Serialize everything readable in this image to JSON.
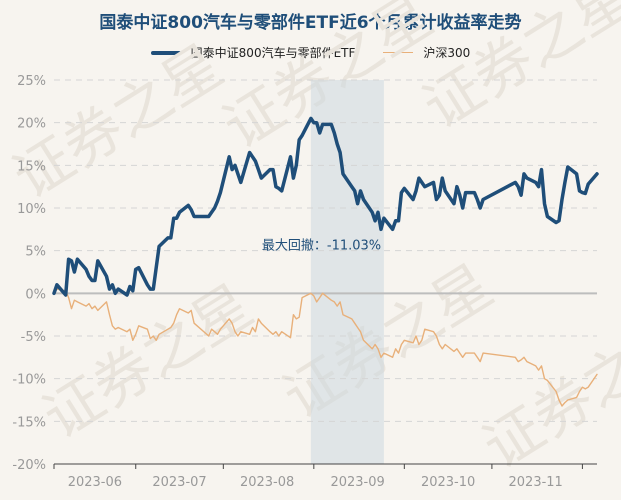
{
  "title": "国泰中证800汽车与零部件ETF近6个月累计收益率走势",
  "colors": {
    "etf": "#1f4e79",
    "index": "#e8b07a",
    "drawdown_band": "#cdd8e0",
    "grid": "#d5d5d5",
    "zero": "#bdbdbd"
  },
  "chart_data": {
    "type": "line",
    "title": "国泰中证800汽车与零部件ETF近6个月累计收益率走势",
    "xlabel": "",
    "ylabel": "",
    "ylim": [
      -20,
      25
    ],
    "y_ticks": [
      "25%",
      "20%",
      "15%",
      "10%",
      "5%",
      "0%",
      "-5%",
      "-10%",
      "-15%",
      "-20%"
    ],
    "x_ticks": [
      "2023-06",
      "2023-07",
      "2023-08",
      "2023-09",
      "2023-10",
      "2023-11"
    ],
    "grid": true,
    "legend_position": "top-center",
    "annotation": {
      "text": "最大回撤：-11.03%",
      "band_start": "2023-07-31",
      "band_end": "2023-08-25"
    },
    "series": [
      {
        "name": "国泰中证800汽车与零部件ETF",
        "points": [
          [
            "2023-05-04",
            0.0
          ],
          [
            "2023-05-05",
            1.0
          ],
          [
            "2023-05-08",
            -0.2
          ],
          [
            "2023-05-09",
            4.0
          ],
          [
            "2023-05-10",
            3.8
          ],
          [
            "2023-05-11",
            2.5
          ],
          [
            "2023-05-12",
            4.0
          ],
          [
            "2023-05-15",
            2.8
          ],
          [
            "2023-05-16",
            2.0
          ],
          [
            "2023-05-17",
            1.5
          ],
          [
            "2023-05-18",
            1.5
          ],
          [
            "2023-05-19",
            3.8
          ],
          [
            "2023-05-22",
            2.0
          ],
          [
            "2023-05-23",
            0.5
          ],
          [
            "2023-05-24",
            1.0
          ],
          [
            "2023-05-25",
            0.0
          ],
          [
            "2023-05-26",
            0.5
          ],
          [
            "2023-05-29",
            -0.2
          ],
          [
            "2023-05-30",
            0.8
          ],
          [
            "2023-05-31",
            0.3
          ],
          [
            "2023-06-01",
            2.8
          ],
          [
            "2023-06-02",
            3.0
          ],
          [
            "2023-06-05",
            1.0
          ],
          [
            "2023-06-06",
            0.5
          ],
          [
            "2023-06-07",
            0.5
          ],
          [
            "2023-06-08",
            3.0
          ],
          [
            "2023-06-09",
            5.5
          ],
          [
            "2023-06-12",
            6.5
          ],
          [
            "2023-06-13",
            6.5
          ],
          [
            "2023-06-14",
            8.8
          ],
          [
            "2023-06-15",
            8.8
          ],
          [
            "2023-06-16",
            9.5
          ],
          [
            "2023-06-19",
            10.3
          ],
          [
            "2023-06-20",
            9.8
          ],
          [
            "2023-06-21",
            9.0
          ],
          [
            "2023-06-26",
            9.0
          ],
          [
            "2023-06-27",
            9.5
          ],
          [
            "2023-06-28",
            10.0
          ],
          [
            "2023-06-29",
            10.8
          ],
          [
            "2023-06-30",
            11.8
          ],
          [
            "2023-07-03",
            16.0
          ],
          [
            "2023-07-04",
            14.5
          ],
          [
            "2023-07-05",
            15.0
          ],
          [
            "2023-07-06",
            14.0
          ],
          [
            "2023-07-07",
            13.0
          ],
          [
            "2023-07-10",
            16.5
          ],
          [
            "2023-07-11",
            16.0
          ],
          [
            "2023-07-12",
            15.5
          ],
          [
            "2023-07-13",
            14.5
          ],
          [
            "2023-07-14",
            13.5
          ],
          [
            "2023-07-17",
            14.5
          ],
          [
            "2023-07-18",
            14.5
          ],
          [
            "2023-07-19",
            12.5
          ],
          [
            "2023-07-20",
            12.3
          ],
          [
            "2023-07-21",
            12.0
          ],
          [
            "2023-07-24",
            16.0
          ],
          [
            "2023-07-25",
            13.5
          ],
          [
            "2023-07-26",
            15.0
          ],
          [
            "2023-07-27",
            18.0
          ],
          [
            "2023-07-28",
            18.5
          ],
          [
            "2023-07-31",
            20.5
          ],
          [
            "2023-08-01",
            20.0
          ],
          [
            "2023-08-02",
            20.0
          ],
          [
            "2023-08-03",
            18.8
          ],
          [
            "2023-08-04",
            19.8
          ],
          [
            "2023-08-07",
            19.8
          ],
          [
            "2023-08-08",
            18.8
          ],
          [
            "2023-08-09",
            17.5
          ],
          [
            "2023-08-10",
            16.5
          ],
          [
            "2023-08-11",
            14.0
          ],
          [
            "2023-08-14",
            12.5
          ],
          [
            "2023-08-15",
            12.0
          ],
          [
            "2023-08-16",
            10.5
          ],
          [
            "2023-08-17",
            12.0
          ],
          [
            "2023-08-18",
            11.0
          ],
          [
            "2023-08-21",
            9.5
          ],
          [
            "2023-08-22",
            8.5
          ],
          [
            "2023-08-23",
            9.5
          ],
          [
            "2023-08-24",
            7.5
          ],
          [
            "2023-08-25",
            8.8
          ],
          [
            "2023-08-28",
            7.5
          ],
          [
            "2023-08-29",
            8.5
          ],
          [
            "2023-08-30",
            8.5
          ],
          [
            "2023-08-31",
            11.8
          ],
          [
            "2023-09-01",
            12.3
          ],
          [
            "2023-09-04",
            11.0
          ],
          [
            "2023-09-05",
            12.0
          ],
          [
            "2023-09-06",
            13.5
          ],
          [
            "2023-09-07",
            13.0
          ],
          [
            "2023-09-08",
            12.5
          ],
          [
            "2023-09-11",
            13.0
          ],
          [
            "2023-09-12",
            11.0
          ],
          [
            "2023-09-13",
            11.5
          ],
          [
            "2023-09-14",
            13.5
          ],
          [
            "2023-09-15",
            12.0
          ],
          [
            "2023-09-18",
            10.5
          ],
          [
            "2023-09-19",
            12.5
          ],
          [
            "2023-09-20",
            11.5
          ],
          [
            "2023-09-21",
            10.0
          ],
          [
            "2023-09-22",
            11.8
          ],
          [
            "2023-09-25",
            11.8
          ],
          [
            "2023-09-26",
            11.0
          ],
          [
            "2023-09-27",
            10.0
          ],
          [
            "2023-09-28",
            11.0
          ],
          [
            "2023-10-09",
            13.0
          ],
          [
            "2023-10-10",
            12.5
          ],
          [
            "2023-10-11",
            11.5
          ],
          [
            "2023-10-12",
            14.0
          ],
          [
            "2023-10-13",
            13.5
          ],
          [
            "2023-10-16",
            13.0
          ],
          [
            "2023-10-17",
            12.5
          ],
          [
            "2023-10-18",
            14.5
          ],
          [
            "2023-10-19",
            10.5
          ],
          [
            "2023-10-20",
            9.0
          ],
          [
            "2023-10-23",
            8.3
          ],
          [
            "2023-10-24",
            8.5
          ],
          [
            "2023-10-25",
            11.0
          ],
          [
            "2023-10-26",
            13.0
          ],
          [
            "2023-10-27",
            14.8
          ],
          [
            "2023-10-30",
            14.0
          ],
          [
            "2023-10-31",
            12.0
          ],
          [
            "2023-11-01",
            11.8
          ],
          [
            "2023-11-02",
            11.7
          ],
          [
            "2023-11-03",
            12.8
          ],
          [
            "2023-11-06",
            14.0
          ]
        ]
      },
      {
        "name": "沪深300",
        "points": [
          [
            "2023-05-04",
            0.0
          ],
          [
            "2023-05-05",
            0.5
          ],
          [
            "2023-05-08",
            0.3
          ],
          [
            "2023-05-09",
            -0.5
          ],
          [
            "2023-05-10",
            -1.8
          ],
          [
            "2023-05-11",
            -0.8
          ],
          [
            "2023-05-12",
            -1.0
          ],
          [
            "2023-05-15",
            -1.5
          ],
          [
            "2023-05-16",
            -1.2
          ],
          [
            "2023-05-17",
            -1.8
          ],
          [
            "2023-05-18",
            -1.5
          ],
          [
            "2023-05-19",
            -2.0
          ],
          [
            "2023-05-22",
            -1.0
          ],
          [
            "2023-05-23",
            -2.5
          ],
          [
            "2023-05-24",
            -3.8
          ],
          [
            "2023-05-25",
            -4.2
          ],
          [
            "2023-05-26",
            -4.0
          ],
          [
            "2023-05-29",
            -4.5
          ],
          [
            "2023-05-30",
            -4.2
          ],
          [
            "2023-05-31",
            -5.5
          ],
          [
            "2023-06-01",
            -4.8
          ],
          [
            "2023-06-02",
            -3.8
          ],
          [
            "2023-06-05",
            -4.2
          ],
          [
            "2023-06-06",
            -5.3
          ],
          [
            "2023-06-07",
            -5.0
          ],
          [
            "2023-06-08",
            -5.5
          ],
          [
            "2023-06-09",
            -4.8
          ],
          [
            "2023-06-12",
            -4.2
          ],
          [
            "2023-06-13",
            -4.0
          ],
          [
            "2023-06-14",
            -3.5
          ],
          [
            "2023-06-15",
            -2.5
          ],
          [
            "2023-06-16",
            -1.8
          ],
          [
            "2023-06-19",
            -2.3
          ],
          [
            "2023-06-20",
            -2.0
          ],
          [
            "2023-06-21",
            -3.5
          ],
          [
            "2023-06-26",
            -5.0
          ],
          [
            "2023-06-27",
            -4.2
          ],
          [
            "2023-06-28",
            -4.5
          ],
          [
            "2023-06-29",
            -4.8
          ],
          [
            "2023-06-30",
            -4.2
          ],
          [
            "2023-07-03",
            -3.0
          ],
          [
            "2023-07-04",
            -3.5
          ],
          [
            "2023-07-05",
            -4.5
          ],
          [
            "2023-07-06",
            -5.0
          ],
          [
            "2023-07-07",
            -4.5
          ],
          [
            "2023-07-10",
            -4.8
          ],
          [
            "2023-07-11",
            -4.0
          ],
          [
            "2023-07-12",
            -4.5
          ],
          [
            "2023-07-13",
            -3.0
          ],
          [
            "2023-07-14",
            -3.5
          ],
          [
            "2023-07-17",
            -4.5
          ],
          [
            "2023-07-18",
            -4.8
          ],
          [
            "2023-07-19",
            -4.5
          ],
          [
            "2023-07-20",
            -5.0
          ],
          [
            "2023-07-21",
            -4.5
          ],
          [
            "2023-07-24",
            -5.2
          ],
          [
            "2023-07-25",
            -2.5
          ],
          [
            "2023-07-26",
            -3.0
          ],
          [
            "2023-07-27",
            -2.8
          ],
          [
            "2023-07-28",
            -0.5
          ],
          [
            "2023-07-31",
            0.0
          ],
          [
            "2023-08-01",
            -0.3
          ],
          [
            "2023-08-02",
            -1.0
          ],
          [
            "2023-08-03",
            -0.5
          ],
          [
            "2023-08-04",
            0.0
          ],
          [
            "2023-08-07",
            -0.8
          ],
          [
            "2023-08-08",
            -1.0
          ],
          [
            "2023-08-09",
            -1.5
          ],
          [
            "2023-08-10",
            -1.0
          ],
          [
            "2023-08-11",
            -2.5
          ],
          [
            "2023-08-14",
            -3.0
          ],
          [
            "2023-08-15",
            -3.5
          ],
          [
            "2023-08-16",
            -4.0
          ],
          [
            "2023-08-17",
            -4.5
          ],
          [
            "2023-08-18",
            -5.5
          ],
          [
            "2023-08-21",
            -6.5
          ],
          [
            "2023-08-22",
            -6.0
          ],
          [
            "2023-08-23",
            -6.5
          ],
          [
            "2023-08-24",
            -7.5
          ],
          [
            "2023-08-25",
            -7.0
          ],
          [
            "2023-08-28",
            -7.5
          ],
          [
            "2023-08-29",
            -6.5
          ],
          [
            "2023-08-30",
            -7.0
          ],
          [
            "2023-08-31",
            -6.0
          ],
          [
            "2023-09-01",
            -5.5
          ],
          [
            "2023-09-04",
            -5.8
          ],
          [
            "2023-09-05",
            -5.0
          ],
          [
            "2023-09-06",
            -6.0
          ],
          [
            "2023-09-07",
            -5.5
          ],
          [
            "2023-09-08",
            -4.2
          ],
          [
            "2023-09-11",
            -4.5
          ],
          [
            "2023-09-12",
            -5.0
          ],
          [
            "2023-09-13",
            -6.0
          ],
          [
            "2023-09-14",
            -6.5
          ],
          [
            "2023-09-15",
            -6.0
          ],
          [
            "2023-09-18",
            -6.8
          ],
          [
            "2023-09-19",
            -6.5
          ],
          [
            "2023-09-20",
            -7.0
          ],
          [
            "2023-09-21",
            -7.5
          ],
          [
            "2023-09-22",
            -7.0
          ],
          [
            "2023-09-25",
            -7.0
          ],
          [
            "2023-09-26",
            -7.5
          ],
          [
            "2023-09-27",
            -8.0
          ],
          [
            "2023-09-28",
            -7.0
          ],
          [
            "2023-10-09",
            -7.5
          ],
          [
            "2023-10-10",
            -8.0
          ],
          [
            "2023-10-11",
            -7.8
          ],
          [
            "2023-10-12",
            -7.5
          ],
          [
            "2023-10-13",
            -8.0
          ],
          [
            "2023-10-16",
            -8.5
          ],
          [
            "2023-10-17",
            -9.0
          ],
          [
            "2023-10-18",
            -8.5
          ],
          [
            "2023-10-19",
            -10.0
          ],
          [
            "2023-10-20",
            -10.2
          ],
          [
            "2023-10-23",
            -11.5
          ],
          [
            "2023-10-24",
            -12.5
          ],
          [
            "2023-10-25",
            -13.2
          ],
          [
            "2023-10-26",
            -12.8
          ],
          [
            "2023-10-27",
            -12.5
          ],
          [
            "2023-10-30",
            -12.2
          ],
          [
            "2023-10-31",
            -11.5
          ],
          [
            "2023-11-01",
            -11.0
          ],
          [
            "2023-11-02",
            -11.2
          ],
          [
            "2023-11-03",
            -11.0
          ],
          [
            "2023-11-06",
            -9.5
          ]
        ]
      }
    ]
  }
}
